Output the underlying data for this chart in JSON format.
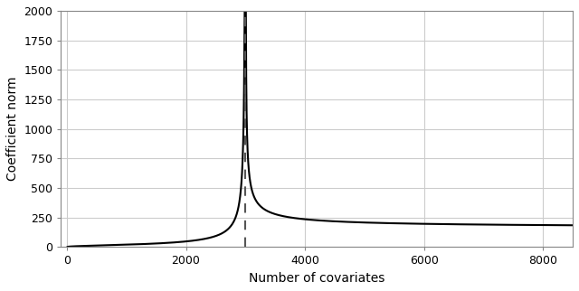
{
  "title": "",
  "xlabel": "Number of covariates",
  "ylabel": "Coefficient norm",
  "xlim": [
    -100,
    8500
  ],
  "ylim": [
    0,
    2000
  ],
  "xticks": [
    0,
    2000,
    4000,
    6000,
    8000
  ],
  "yticks": [
    0,
    250,
    500,
    750,
    1000,
    1250,
    1500,
    1750,
    2000
  ],
  "vline_x": 3000,
  "n_samples": 3000,
  "x_max": 8500,
  "background_color": "#ffffff",
  "line_color": "black",
  "vline_color": "#555555",
  "grid_color": "#cccccc",
  "figsize": [
    6.4,
    3.22
  ],
  "dpi": 100,
  "clip_val": 2000,
  "under_scale": 0.18,
  "under_power_x": 1.0,
  "under_power_n": 1.0,
  "over_base": 160,
  "over_alpha": 0.55,
  "over_A_factor": 1.0
}
